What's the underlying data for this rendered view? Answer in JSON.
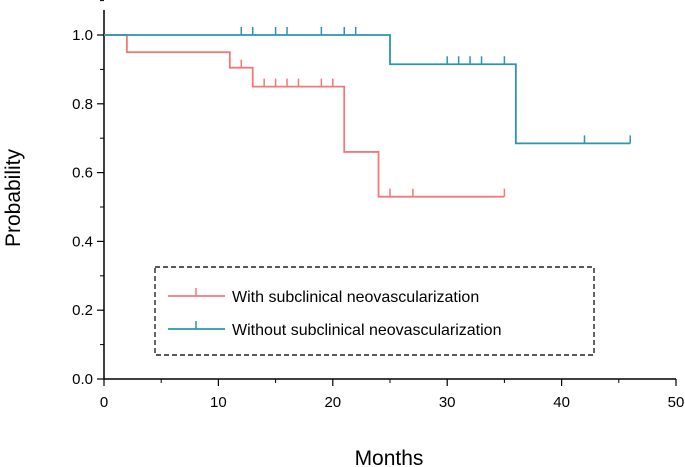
{
  "chart_data": {
    "type": "line",
    "step": true,
    "xlabel": "Months",
    "ylabel": "Probability",
    "xlim": [
      0,
      50
    ],
    "ylim": [
      0,
      1.0
    ],
    "xticks": [
      "0",
      "10",
      "20",
      "30",
      "40",
      "50"
    ],
    "yticks": [
      "0.0",
      "0.2",
      "0.4",
      "0.6",
      "0.8",
      "1.0"
    ],
    "grid": false,
    "legend_position": "bottom-center",
    "legend_border": "dashed",
    "series": [
      {
        "name": "With subclinical neovascularization",
        "color": "#f07a7a",
        "steps": [
          [
            0,
            1.0
          ],
          [
            2,
            0.95
          ],
          [
            11,
            0.905
          ],
          [
            13,
            0.85
          ],
          [
            21,
            0.66
          ],
          [
            24,
            0.53
          ],
          [
            35,
            0.53
          ]
        ],
        "censored": [
          12,
          14,
          15,
          16,
          17,
          19,
          20,
          25,
          27,
          35
        ]
      },
      {
        "name": "Without subclinical neovascularization",
        "color": "#2a95b0",
        "steps": [
          [
            0,
            1.0
          ],
          [
            25,
            0.915
          ],
          [
            36,
            0.685
          ],
          [
            46,
            0.685
          ]
        ],
        "censored": [
          12,
          13,
          15,
          16,
          19,
          21,
          22,
          30,
          31,
          32,
          33,
          35,
          42,
          46
        ]
      }
    ]
  }
}
